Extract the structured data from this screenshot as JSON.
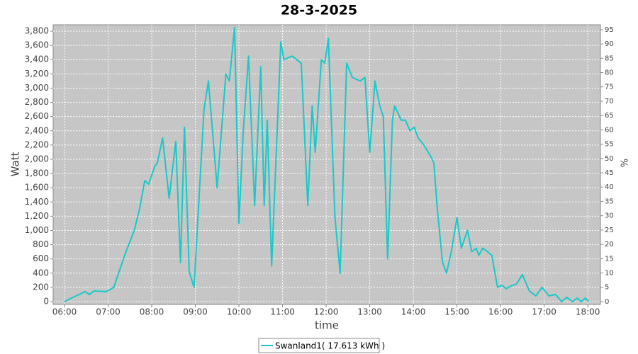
{
  "chart_data": {
    "type": "line",
    "title": "28-3-2025",
    "x_label": "time",
    "y_label": "Watt",
    "y2_label": "%",
    "xlim": [
      5.74,
      18.29
    ],
    "xticks": [
      {
        "value": 6,
        "label": "06:00"
      },
      {
        "value": 7,
        "label": "07:00"
      },
      {
        "value": 8,
        "label": "08:00"
      },
      {
        "value": 9,
        "label": "09:00"
      },
      {
        "value": 10,
        "label": "10:00"
      },
      {
        "value": 11,
        "label": "11:00"
      },
      {
        "value": 12,
        "label": "12:00"
      },
      {
        "value": 13,
        "label": "13:00"
      },
      {
        "value": 14,
        "label": "14:00"
      },
      {
        "value": 15,
        "label": "15:00"
      },
      {
        "value": 16,
        "label": "16:00"
      },
      {
        "value": 17,
        "label": "17:00"
      },
      {
        "value": 18,
        "label": "18:00"
      }
    ],
    "ylim": [
      -40,
      3890
    ],
    "yticks": [
      0,
      200,
      400,
      600,
      800,
      {
        "value": 1000,
        "label": "1,000"
      },
      {
        "value": 1200,
        "label": "1,200"
      },
      {
        "value": 1400,
        "label": "1,400"
      },
      {
        "value": 1600,
        "label": "1,600"
      },
      {
        "value": 1800,
        "label": "1,800"
      },
      {
        "value": 2000,
        "label": "2,000"
      },
      {
        "value": 2200,
        "label": "2,200"
      },
      {
        "value": 2400,
        "label": "2,400"
      },
      {
        "value": 2600,
        "label": "2,600"
      },
      {
        "value": 2800,
        "label": "2,800"
      },
      {
        "value": 3000,
        "label": "3,000"
      },
      {
        "value": 3200,
        "label": "3,200"
      },
      {
        "value": 3400,
        "label": "3,400"
      },
      {
        "value": 3600,
        "label": "3,600"
      },
      {
        "value": 3800,
        "label": "3,800"
      }
    ],
    "y2lim": [
      -1,
      96.7
    ],
    "y2ticks": [
      0,
      5,
      10,
      15,
      20,
      25,
      30,
      35,
      40,
      45,
      50,
      55,
      60,
      65,
      70,
      75,
      80,
      85,
      90,
      95
    ],
    "grid": true,
    "legend": "bottom",
    "x": [
      6.0,
      6.16,
      6.34,
      6.47,
      6.57,
      6.68,
      6.96,
      7.13,
      7.24,
      7.41,
      7.6,
      7.72,
      7.84,
      7.93,
      8.07,
      8.13,
      8.25,
      8.4,
      8.55,
      8.66,
      8.75,
      8.86,
      8.97,
      9.2,
      9.3,
      9.5,
      9.7,
      9.78,
      9.9,
      10.0,
      10.1,
      10.22,
      10.36,
      10.5,
      10.58,
      10.65,
      10.75,
      10.96,
      11.03,
      11.22,
      11.43,
      11.58,
      11.68,
      11.75,
      11.89,
      11.97,
      12.05,
      12.2,
      12.32,
      12.47,
      12.6,
      12.78,
      12.89,
      13.0,
      13.12,
      13.23,
      13.31,
      13.41,
      13.52,
      13.57,
      13.72,
      13.82,
      13.92,
      14.02,
      14.11,
      14.24,
      14.39,
      14.47,
      14.55,
      14.67,
      14.76,
      14.87,
      15.0,
      15.1,
      15.24,
      15.34,
      15.44,
      15.5,
      15.59,
      15.7,
      15.8,
      15.93,
      16.03,
      16.13,
      16.27,
      16.37,
      16.5,
      16.66,
      16.81,
      16.95,
      17.11,
      17.26,
      17.4,
      17.52,
      17.65,
      17.76,
      17.85,
      17.94,
      18.02
    ],
    "series": [
      {
        "name": "Swanland1( 17.613 kWh )",
        "color": "#19c8c8",
        "values": [
          0,
          50,
          100,
          140,
          100,
          150,
          140,
          200,
          400,
          700,
          1000,
          1300,
          1700,
          1650,
          1900,
          1950,
          2300,
          1450,
          2250,
          550,
          2450,
          420,
          200,
          2700,
          3100,
          1600,
          3200,
          3100,
          3850,
          1100,
          2400,
          3450,
          1350,
          3300,
          1350,
          2550,
          500,
          3650,
          3400,
          3450,
          3350,
          1350,
          2750,
          2100,
          3400,
          3350,
          3700,
          1200,
          400,
          3350,
          3150,
          3100,
          3150,
          2100,
          3100,
          2750,
          2600,
          600,
          2550,
          2750,
          2550,
          2550,
          2400,
          2450,
          2300,
          2200,
          2050,
          1950,
          1300,
          550,
          400,
          700,
          1180,
          750,
          1000,
          700,
          750,
          650,
          750,
          700,
          650,
          200,
          230,
          180,
          230,
          250,
          380,
          150,
          80,
          200,
          80,
          100,
          0,
          60,
          0,
          50,
          0,
          50,
          0
        ]
      }
    ]
  }
}
